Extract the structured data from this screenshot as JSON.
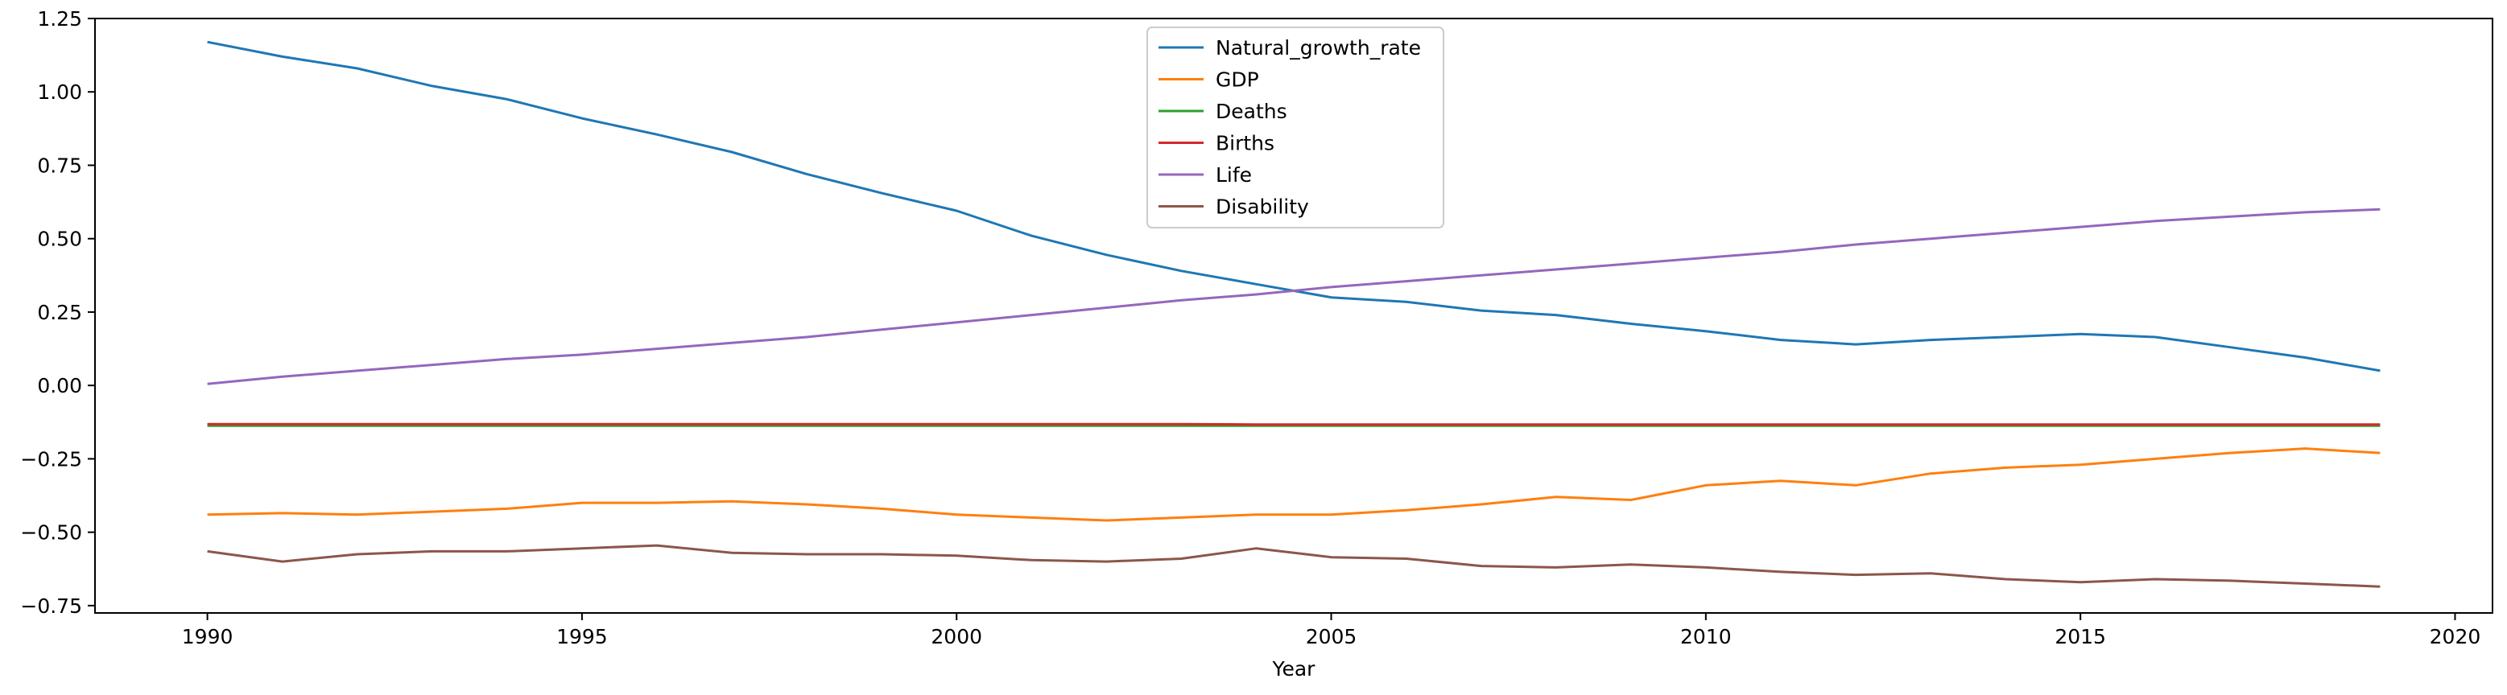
{
  "chart_data": {
    "type": "line",
    "title": "",
    "xlabel": "Year",
    "ylabel": "",
    "xlim": [
      1988.5,
      2020.5
    ],
    "ylim": [
      -0.775,
      1.25
    ],
    "xticks": [
      1990,
      1995,
      2000,
      2005,
      2010,
      2015,
      2020
    ],
    "yticks": [
      -0.75,
      -0.5,
      -0.25,
      0.0,
      0.25,
      0.5,
      0.75,
      1.0,
      1.25
    ],
    "ytick_labels": [
      "−0.75",
      "−0.50",
      "−0.25",
      "0.00",
      "0.25",
      "0.50",
      "0.75",
      "1.00",
      "1.25"
    ],
    "grid": false,
    "legend_position": "upper-center",
    "x": [
      1990,
      1991,
      1992,
      1993,
      1994,
      1995,
      1996,
      1997,
      1998,
      1999,
      2000,
      2001,
      2002,
      2003,
      2004,
      2005,
      2006,
      2007,
      2008,
      2009,
      2010,
      2011,
      2012,
      2013,
      2014,
      2015,
      2016,
      2017,
      2018,
      2019
    ],
    "series": [
      {
        "name": "Natural_growth_rate",
        "color": "#1f77b4",
        "values": [
          1.17,
          1.12,
          1.08,
          1.02,
          0.975,
          0.91,
          0.855,
          0.795,
          0.72,
          0.655,
          0.595,
          0.51,
          0.445,
          0.39,
          0.345,
          0.3,
          0.285,
          0.255,
          0.24,
          0.21,
          0.185,
          0.155,
          0.14,
          0.155,
          0.165,
          0.175,
          0.165,
          0.13,
          0.095,
          0.05
        ]
      },
      {
        "name": "GDP",
        "color": "#ff7f0e",
        "values": [
          -0.44,
          -0.435,
          -0.44,
          -0.43,
          -0.42,
          -0.4,
          -0.4,
          -0.395,
          -0.405,
          -0.42,
          -0.44,
          -0.45,
          -0.46,
          -0.45,
          -0.44,
          -0.44,
          -0.425,
          -0.405,
          -0.38,
          -0.39,
          -0.34,
          -0.325,
          -0.34,
          -0.3,
          -0.28,
          -0.27,
          -0.25,
          -0.23,
          -0.215,
          -0.23
        ]
      },
      {
        "name": "Deaths",
        "color": "#2ca02c",
        "values": [
          -0.137,
          -0.137,
          -0.137,
          -0.137,
          -0.137,
          -0.137,
          -0.137,
          -0.137,
          -0.137,
          -0.137,
          -0.137,
          -0.137,
          -0.137,
          -0.137,
          -0.137,
          -0.137,
          -0.137,
          -0.137,
          -0.137,
          -0.137,
          -0.137,
          -0.137,
          -0.137,
          -0.137,
          -0.137,
          -0.137,
          -0.137,
          -0.137,
          -0.137,
          -0.137
        ]
      },
      {
        "name": "Births",
        "color": "#d62728",
        "values": [
          -0.132,
          -0.132,
          -0.132,
          -0.132,
          -0.132,
          -0.132,
          -0.132,
          -0.132,
          -0.132,
          -0.132,
          -0.132,
          -0.132,
          -0.132,
          -0.132,
          -0.133,
          -0.133,
          -0.133,
          -0.133,
          -0.133,
          -0.133,
          -0.133,
          -0.133,
          -0.133,
          -0.133,
          -0.133,
          -0.133,
          -0.133,
          -0.133,
          -0.133,
          -0.133
        ]
      },
      {
        "name": "Life",
        "color": "#9467bd",
        "values": [
          0.005,
          0.03,
          0.05,
          0.07,
          0.09,
          0.105,
          0.125,
          0.145,
          0.165,
          0.19,
          0.215,
          0.24,
          0.265,
          0.29,
          0.31,
          0.335,
          0.355,
          0.375,
          0.395,
          0.415,
          0.435,
          0.455,
          0.48,
          0.5,
          0.52,
          0.54,
          0.56,
          0.575,
          0.59,
          0.6
        ]
      },
      {
        "name": "Disability",
        "color": "#8c564b",
        "values": [
          -0.565,
          -0.6,
          -0.575,
          -0.565,
          -0.565,
          -0.555,
          -0.545,
          -0.57,
          -0.575,
          -0.575,
          -0.58,
          -0.595,
          -0.6,
          -0.59,
          -0.555,
          -0.585,
          -0.59,
          -0.615,
          -0.62,
          -0.61,
          -0.62,
          -0.635,
          -0.645,
          -0.64,
          -0.66,
          -0.67,
          -0.66,
          -0.665,
          -0.675,
          -0.685
        ]
      }
    ]
  }
}
